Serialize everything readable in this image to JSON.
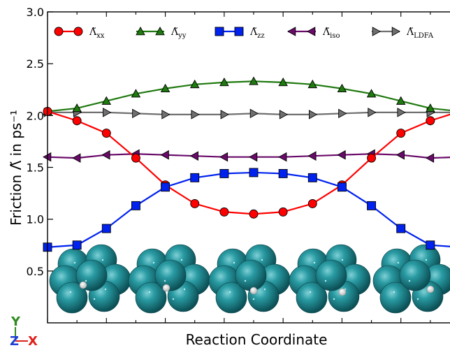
{
  "chart_data": {
    "type": "line",
    "xlabel": "Reaction Coordinate",
    "ylabel": "Friction Λ̃ in ps⁻¹",
    "ylim": [
      0.0,
      3.0
    ],
    "yticks": [
      "0.5",
      "1.0",
      "1.5",
      "2.0",
      "2.5",
      "3.0"
    ],
    "x": [
      0,
      1,
      2,
      3,
      4,
      5,
      6,
      7,
      8,
      9,
      10,
      11,
      12,
      13,
      14
    ],
    "grid": false,
    "legend_position": "top",
    "series": [
      {
        "name": "Λ̃xx",
        "legend_base": "Λ̃",
        "legend_sub": "xx",
        "color": "#ff0000",
        "marker": "circle",
        "values": [
          2.04,
          1.95,
          1.83,
          1.59,
          1.33,
          1.15,
          1.07,
          1.05,
          1.07,
          1.15,
          1.33,
          1.59,
          1.83,
          1.95,
          2.04
        ]
      },
      {
        "name": "Λ̃yy",
        "legend_base": "Λ̃",
        "legend_sub": "yy",
        "color": "#1f7a0f",
        "marker": "triangle-up",
        "values": [
          2.04,
          2.07,
          2.14,
          2.21,
          2.26,
          2.3,
          2.32,
          2.33,
          2.32,
          2.3,
          2.26,
          2.21,
          2.14,
          2.07,
          2.04
        ]
      },
      {
        "name": "Λ̃zz",
        "legend_base": "Λ̃",
        "legend_sub": "zz",
        "color": "#0022ee",
        "marker": "square",
        "values": [
          0.73,
          0.75,
          0.91,
          1.13,
          1.31,
          1.4,
          1.44,
          1.45,
          1.44,
          1.4,
          1.31,
          1.13,
          0.91,
          0.75,
          0.73
        ]
      },
      {
        "name": "Λ̃iso",
        "legend_base": "Λ̃",
        "legend_sub": "iso",
        "color": "#6a0a6a",
        "marker": "triangle-left",
        "values": [
          1.6,
          1.59,
          1.62,
          1.63,
          1.62,
          1.61,
          1.6,
          1.6,
          1.6,
          1.61,
          1.62,
          1.63,
          1.62,
          1.59,
          1.6
        ]
      },
      {
        "name": "Λ̃LDFA",
        "legend_base": "Λ̃",
        "legend_sub": "LDFA",
        "color": "#707070",
        "marker": "triangle-right",
        "values": [
          2.03,
          2.03,
          2.03,
          2.02,
          2.01,
          2.01,
          2.01,
          2.02,
          2.01,
          2.01,
          2.02,
          2.03,
          2.03,
          2.03,
          2.03
        ]
      }
    ]
  },
  "axis_indicator": {
    "y_label": "Y",
    "z_label": "Z",
    "x_label": "X",
    "y_color": "#2e8b1e",
    "z_color": "#1f3fd6",
    "x_color": "#e0201a"
  },
  "inset_structures": {
    "count": 5,
    "atom_color": "#1a8a93",
    "adsorbate_color": "#e8e8e8"
  }
}
